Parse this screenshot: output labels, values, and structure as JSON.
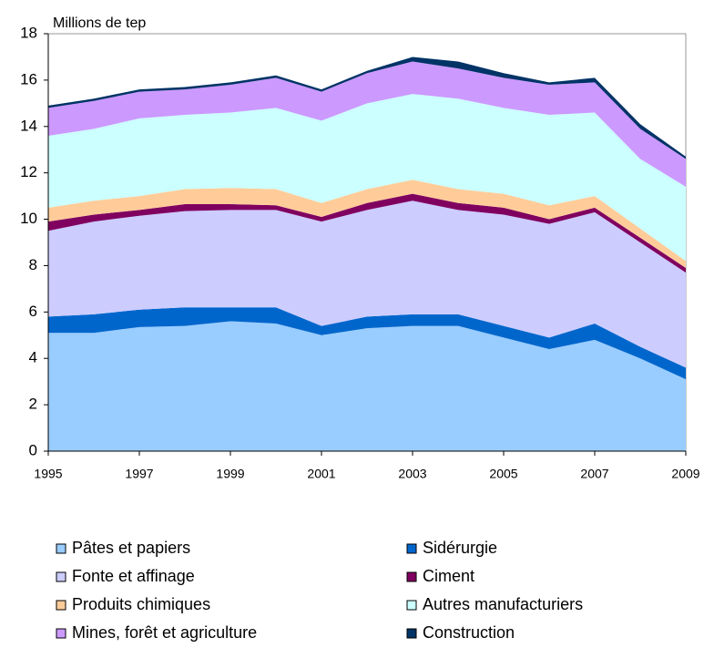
{
  "chart_data": {
    "type": "stacked_area",
    "y_label": "Millions de tep",
    "x": [
      1995,
      1996,
      1997,
      1998,
      1999,
      2000,
      2001,
      2002,
      2003,
      2004,
      2005,
      2006,
      2007,
      2008,
      2009
    ],
    "xlim": [
      1995,
      2009
    ],
    "xticks": [
      1995,
      1997,
      1999,
      2001,
      2003,
      2005,
      2007,
      2009
    ],
    "ylim": [
      0,
      18
    ],
    "yticks": [
      0,
      2,
      4,
      6,
      8,
      10,
      12,
      14,
      16,
      18
    ],
    "series": [
      {
        "name": "Pâtes et papiers",
        "color": "#99ccff",
        "values": [
          5.1,
          5.1,
          5.35,
          5.4,
          5.6,
          5.5,
          5.0,
          5.3,
          5.4,
          5.4,
          4.9,
          4.4,
          4.8,
          4.0,
          3.1
        ]
      },
      {
        "name": "Sidérurgie",
        "color": "#0066cc",
        "values": [
          0.7,
          0.8,
          0.75,
          0.8,
          0.6,
          0.7,
          0.4,
          0.5,
          0.5,
          0.5,
          0.5,
          0.5,
          0.7,
          0.5,
          0.5
        ]
      },
      {
        "name": "Fonte et affinage",
        "color": "#ccccff",
        "values": [
          3.7,
          4.0,
          4.05,
          4.15,
          4.2,
          4.2,
          4.5,
          4.6,
          4.9,
          4.5,
          4.8,
          4.9,
          4.8,
          4.5,
          4.1
        ]
      },
      {
        "name": "Ciment",
        "color": "#800060",
        "values": [
          0.4,
          0.3,
          0.25,
          0.3,
          0.25,
          0.2,
          0.2,
          0.3,
          0.3,
          0.3,
          0.3,
          0.2,
          0.2,
          0.2,
          0.2
        ]
      },
      {
        "name": "Produits chimiques",
        "color": "#ffcc99",
        "values": [
          0.6,
          0.6,
          0.6,
          0.65,
          0.7,
          0.7,
          0.6,
          0.6,
          0.6,
          0.6,
          0.6,
          0.6,
          0.5,
          0.4,
          0.3
        ]
      },
      {
        "name": "Autres manufacturiers",
        "color": "#ccffff",
        "values": [
          3.1,
          3.1,
          3.35,
          3.2,
          3.25,
          3.5,
          3.55,
          3.7,
          3.7,
          3.9,
          3.7,
          3.9,
          3.6,
          3.0,
          3.2
        ]
      },
      {
        "name": "Mines, forêt et agriculture",
        "color": "#cc99ff",
        "values": [
          1.2,
          1.2,
          1.15,
          1.1,
          1.2,
          1.3,
          1.25,
          1.3,
          1.4,
          1.3,
          1.3,
          1.3,
          1.3,
          1.3,
          1.2
        ]
      },
      {
        "name": "Construction",
        "color": "#003366",
        "values": [
          0.1,
          0.1,
          0.1,
          0.1,
          0.1,
          0.1,
          0.1,
          0.1,
          0.2,
          0.3,
          0.2,
          0.1,
          0.2,
          0.2,
          0.1
        ]
      }
    ]
  }
}
